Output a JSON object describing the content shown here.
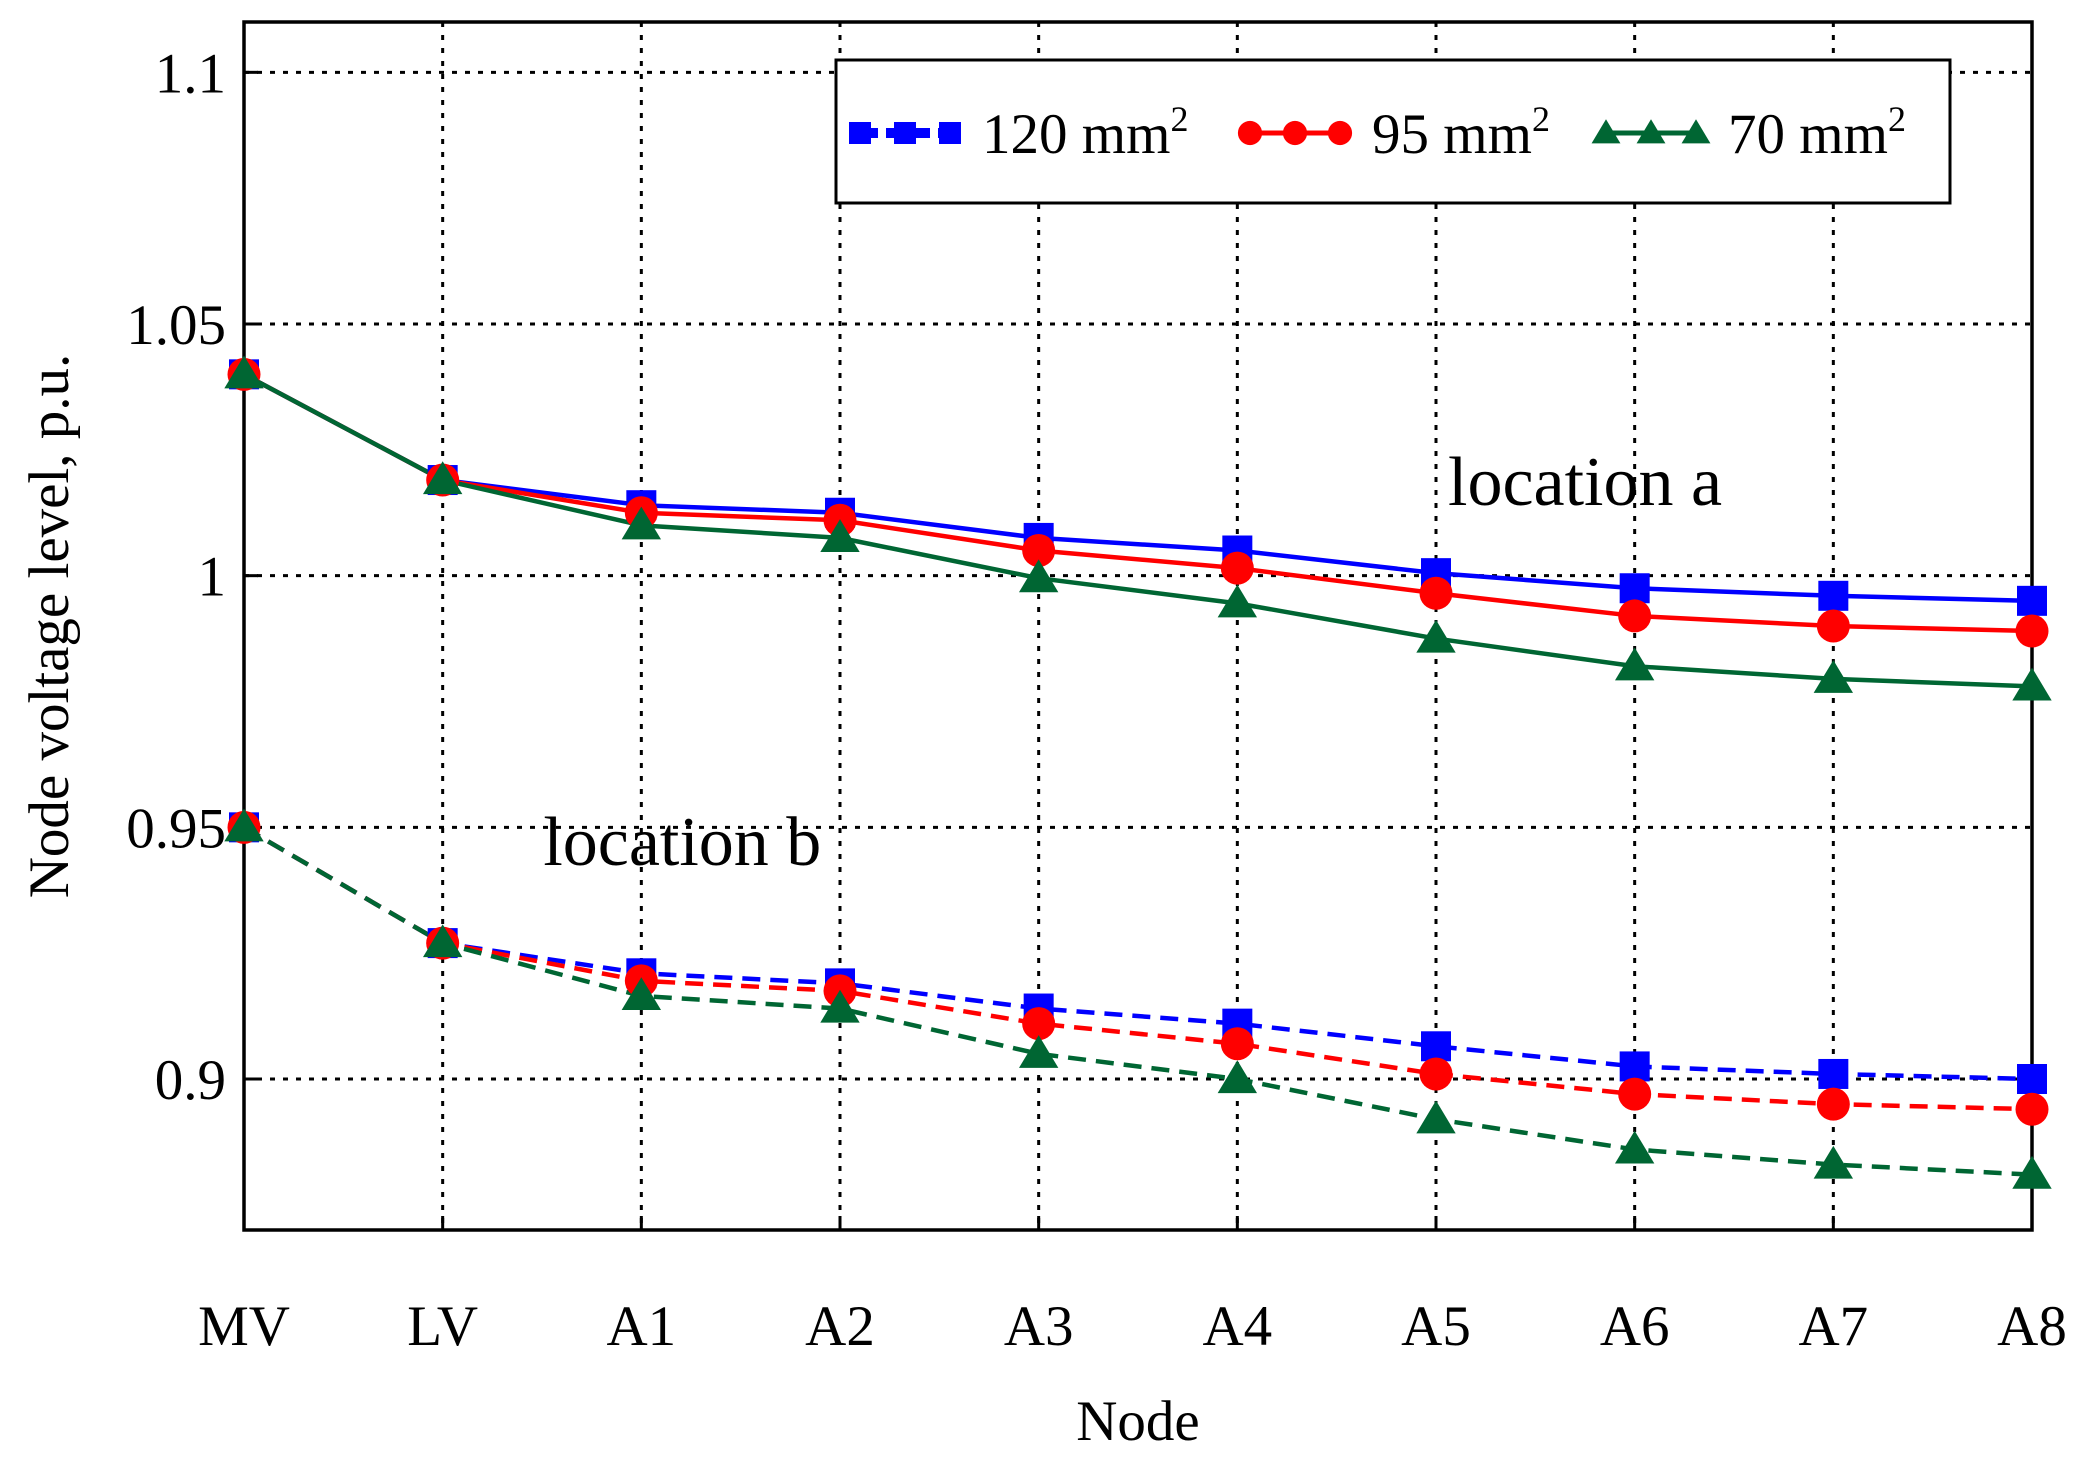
{
  "chart_data": {
    "type": "line",
    "title": "",
    "xlabel": "Node",
    "ylabel": "Node voltage level, p.u.",
    "categories": [
      "MV",
      "LV",
      "A1",
      "A2",
      "A3",
      "A4",
      "A5",
      "A6",
      "A7",
      "A8"
    ],
    "ylim": [
      0.87,
      1.11
    ],
    "yticks": [
      0.9,
      0.95,
      1,
      1.05,
      1.1
    ],
    "ytick_labels": [
      "0.9",
      "0.95",
      "1",
      "1.05",
      "1.1"
    ],
    "grid": true,
    "legend_position": "top-right",
    "series": [
      {
        "name": "120 mm",
        "sup": "2",
        "group": "location a",
        "color": "#0000ff",
        "marker": "square",
        "line": "solid",
        "values": [
          1.04,
          1.019,
          1.014,
          1.0125,
          1.0075,
          1.005,
          1.0005,
          0.9975,
          0.996,
          0.995
        ]
      },
      {
        "name": "95 mm",
        "sup": "2",
        "group": "location a",
        "color": "#ff0000",
        "marker": "circle",
        "line": "solid",
        "values": [
          1.04,
          1.019,
          1.0125,
          1.011,
          1.005,
          1.0015,
          0.9965,
          0.992,
          0.99,
          0.989
        ]
      },
      {
        "name": "70 mm",
        "sup": "2",
        "group": "location a",
        "color": "#006633",
        "marker": "triangle",
        "line": "solid",
        "values": [
          1.04,
          1.019,
          1.01,
          1.0075,
          0.9995,
          0.9945,
          0.9875,
          0.982,
          0.9795,
          0.978
        ]
      },
      {
        "name": "120 mm",
        "sup": "2",
        "group": "location b",
        "color": "#0000ff",
        "marker": "square",
        "line": "dashed",
        "values": [
          0.95,
          0.927,
          0.921,
          0.919,
          0.914,
          0.911,
          0.9065,
          0.9025,
          0.901,
          0.9
        ]
      },
      {
        "name": "95 mm",
        "sup": "2",
        "group": "location b",
        "color": "#ff0000",
        "marker": "circle",
        "line": "dashed",
        "values": [
          0.95,
          0.927,
          0.9195,
          0.9175,
          0.911,
          0.907,
          0.901,
          0.897,
          0.895,
          0.894
        ]
      },
      {
        "name": "70 mm",
        "sup": "2",
        "group": "location b",
        "color": "#006633",
        "marker": "triangle",
        "line": "dashed",
        "values": [
          0.95,
          0.927,
          0.9165,
          0.914,
          0.905,
          0.9,
          0.892,
          0.886,
          0.883,
          0.881
        ]
      }
    ],
    "legend": [
      {
        "label": "120 mm",
        "sup": "2",
        "color": "#0000ff",
        "marker": "square"
      },
      {
        "label": "95 mm",
        "sup": "2",
        "color": "#ff0000",
        "marker": "circle"
      },
      {
        "label": "70 mm",
        "sup": "2",
        "color": "#006633",
        "marker": "triangle"
      }
    ],
    "annotations": [
      {
        "text": "location a",
        "x": "A5",
        "y": 1.014
      },
      {
        "text": "location b",
        "x": "A1",
        "y": 0.9425
      }
    ]
  }
}
